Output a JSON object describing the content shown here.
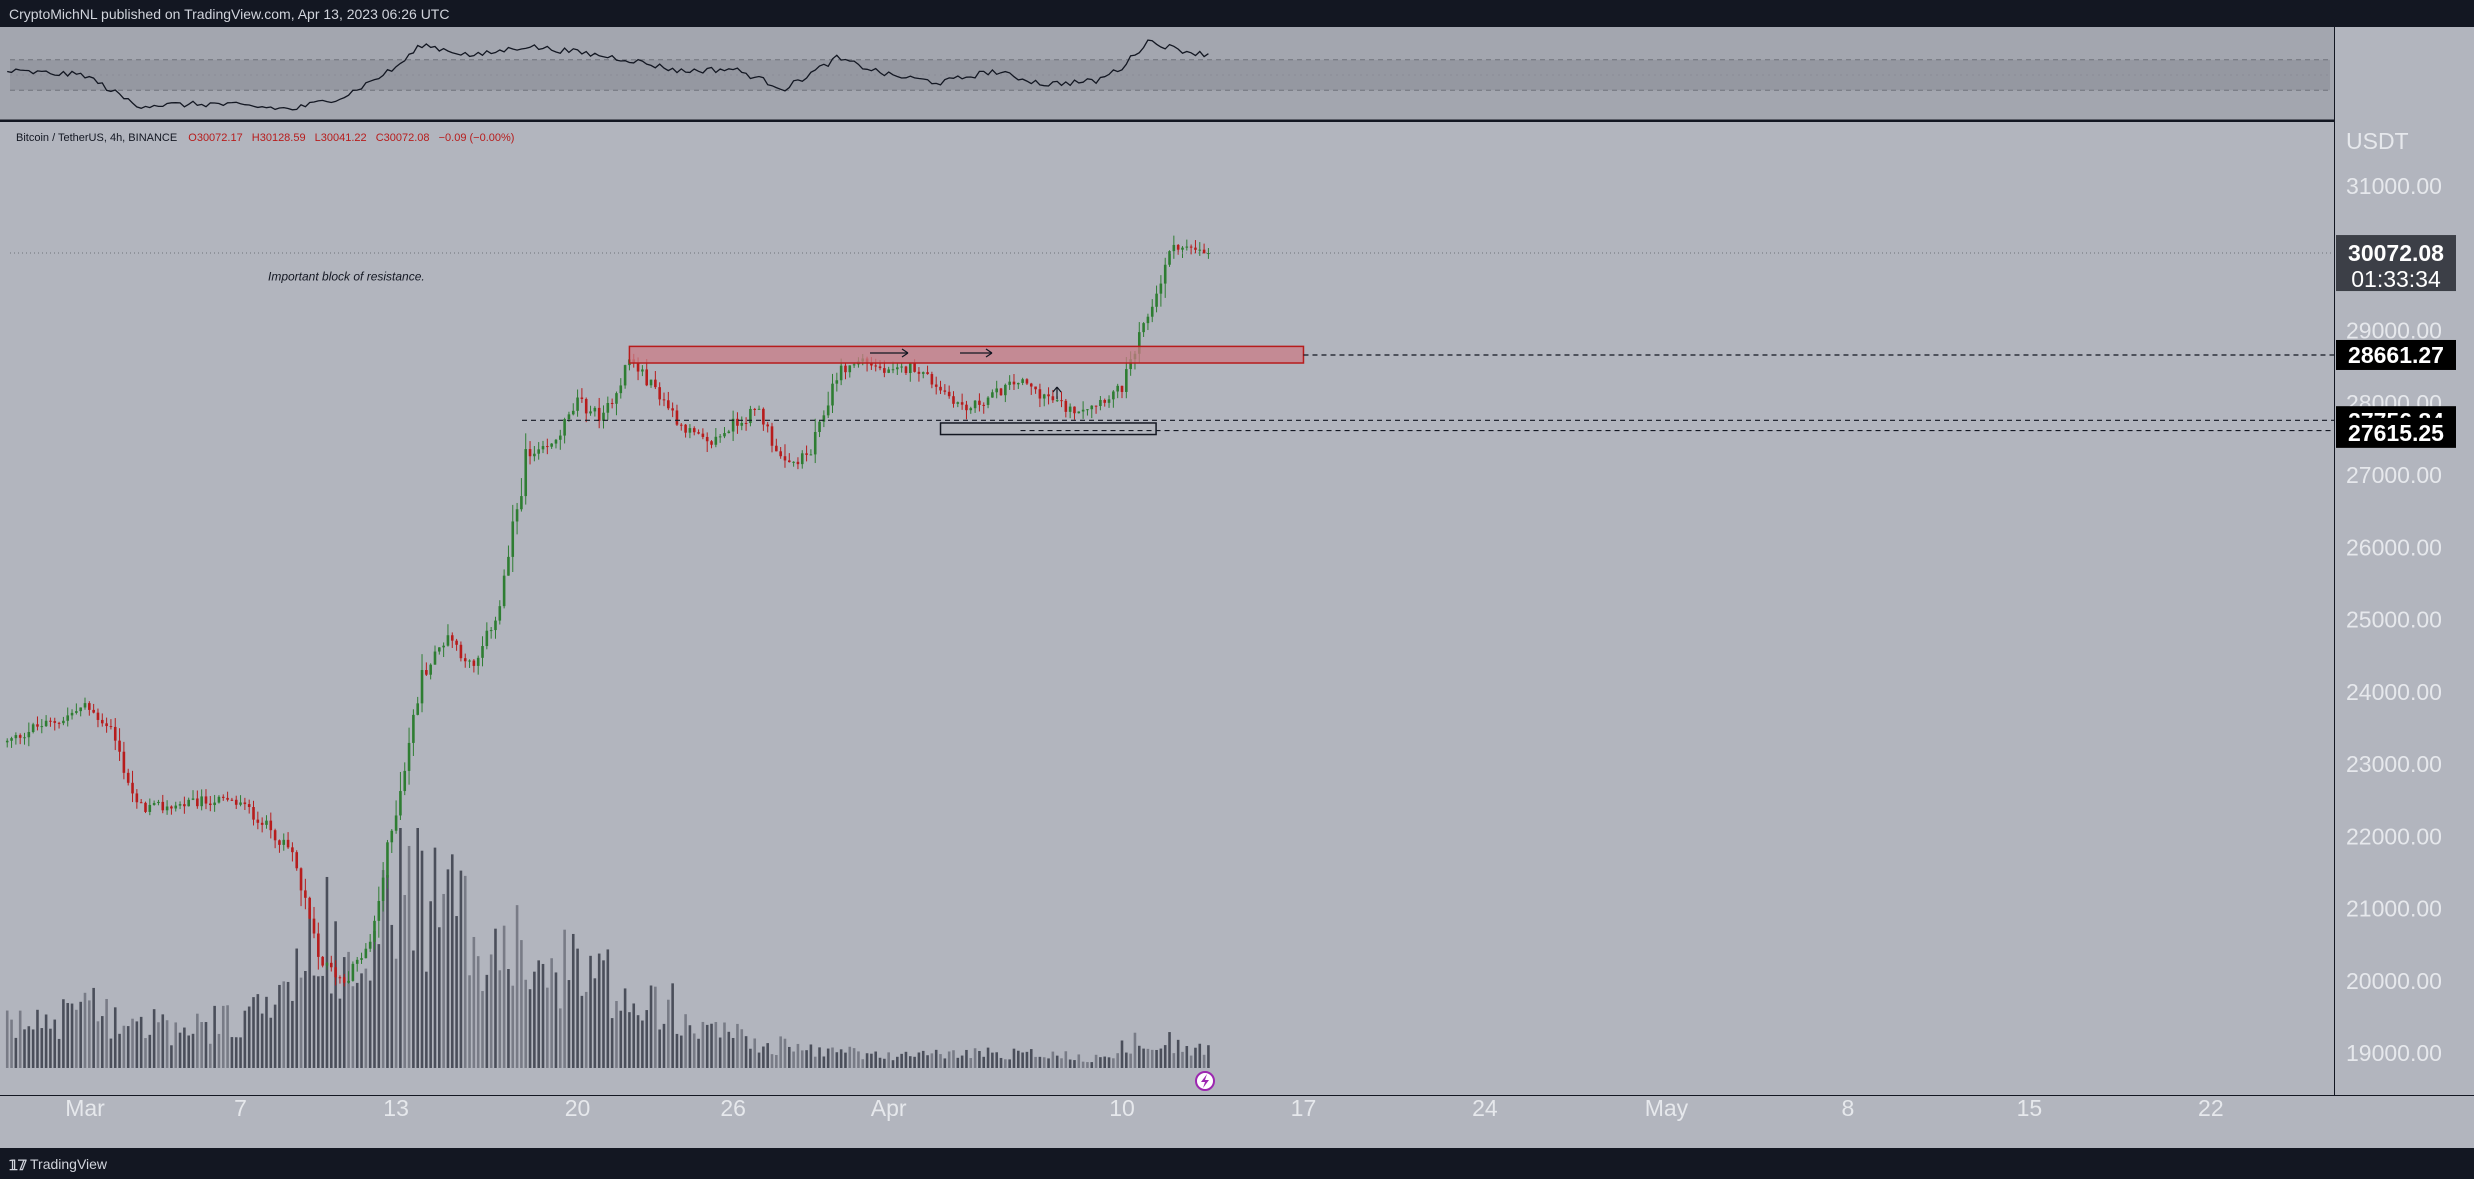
{
  "header": {
    "publisher_text": "CryptoMichNL published on TradingView.com, Apr 13, 2023 06:26 UTC"
  },
  "footer": {
    "logo_glyph": "𝟙𝟟",
    "brand": "TradingView"
  },
  "colors": {
    "page_bg": "#131722",
    "pane_bg": "#b2b5be",
    "rsi_bg": "#a3a6af",
    "rsi_band": "#9598a1",
    "bull": "#2e7d32",
    "bear": "#b71c1c",
    "zone_fill": "#c97c85",
    "zone_stroke": "#b71c1c",
    "volume": "#4a4e5a",
    "volume_light": "#787b86",
    "badge": "#000000",
    "last_badge": "#3c3f47"
  },
  "chart_data": {
    "type": "candlestick",
    "symbol_legend": "Bitcoin / TetherUS, 4h, BINANCE",
    "ohlc": {
      "open": "O30072.17",
      "high": "H30128.59",
      "low": "L30041.22",
      "close": "C30072.08",
      "change": "−0.09 (−0.00%)"
    },
    "y_axis": {
      "unit": "USDT",
      "range": [
        18500,
        31800
      ],
      "ticks": [
        "31000.00",
        "29000.00",
        "28000.00",
        "27000.00",
        "26000.00",
        "25000.00",
        "24000.00",
        "23000.00",
        "22000.00",
        "21000.00",
        "20000.00",
        "19000.00"
      ]
    },
    "x_axis": {
      "range_days": [
        "2023-02-26",
        "2023-05-28"
      ],
      "labels": [
        {
          "text": "Mar",
          "date": "2023-03-01"
        },
        {
          "text": "7",
          "date": "2023-03-07"
        },
        {
          "text": "13",
          "date": "2023-03-13"
        },
        {
          "text": "20",
          "date": "2023-03-20"
        },
        {
          "text": "26",
          "date": "2023-03-26"
        },
        {
          "text": "Apr",
          "date": "2023-04-01"
        },
        {
          "text": "10",
          "date": "2023-04-10"
        },
        {
          "text": "17",
          "date": "2023-04-17"
        },
        {
          "text": "24",
          "date": "2023-04-24"
        },
        {
          "text": "May",
          "date": "2023-05-01"
        },
        {
          "text": "8",
          "date": "2023-05-08"
        },
        {
          "text": "15",
          "date": "2023-05-15"
        },
        {
          "text": "22",
          "date": "2023-05-22"
        }
      ]
    },
    "price_path": [
      {
        "date": "2023-02-26",
        "price": 23300
      },
      {
        "date": "2023-02-27",
        "price": 23500
      },
      {
        "date": "2023-02-28",
        "price": 23600
      },
      {
        "date": "2023-03-01",
        "price": 23800
      },
      {
        "date": "2023-03-02",
        "price": 23500
      },
      {
        "date": "2023-03-03",
        "price": 22400
      },
      {
        "date": "2023-03-04",
        "price": 22400
      },
      {
        "date": "2023-03-05",
        "price": 22450
      },
      {
        "date": "2023-03-06",
        "price": 22500
      },
      {
        "date": "2023-03-07",
        "price": 22450
      },
      {
        "date": "2023-03-08",
        "price": 22150
      },
      {
        "date": "2023-03-09",
        "price": 21750
      },
      {
        "date": "2023-03-10",
        "price": 20300
      },
      {
        "date": "2023-03-11",
        "price": 20000
      },
      {
        "date": "2023-03-12",
        "price": 20500
      },
      {
        "date": "2023-03-13",
        "price": 22400
      },
      {
        "date": "2023-03-14",
        "price": 24200
      },
      {
        "date": "2023-03-15",
        "price": 24800
      },
      {
        "date": "2023-03-16",
        "price": 24300
      },
      {
        "date": "2023-03-17",
        "price": 25200
      },
      {
        "date": "2023-03-18",
        "price": 27200
      },
      {
        "date": "2023-03-19",
        "price": 27400
      },
      {
        "date": "2023-03-20",
        "price": 28000
      },
      {
        "date": "2023-03-21",
        "price": 27800
      },
      {
        "date": "2023-03-22",
        "price": 28600
      },
      {
        "date": "2023-03-23",
        "price": 28200
      },
      {
        "date": "2023-03-24",
        "price": 27700
      },
      {
        "date": "2023-03-25",
        "price": 27400
      },
      {
        "date": "2023-03-26",
        "price": 27700
      },
      {
        "date": "2023-03-27",
        "price": 27900
      },
      {
        "date": "2023-03-28",
        "price": 27100
      },
      {
        "date": "2023-03-29",
        "price": 27300
      },
      {
        "date": "2023-03-30",
        "price": 28400
      },
      {
        "date": "2023-03-31",
        "price": 28600
      },
      {
        "date": "2023-04-01",
        "price": 28400
      },
      {
        "date": "2023-04-02",
        "price": 28500
      },
      {
        "date": "2023-04-03",
        "price": 28200
      },
      {
        "date": "2023-04-04",
        "price": 27900
      },
      {
        "date": "2023-04-05",
        "price": 28100
      },
      {
        "date": "2023-04-06",
        "price": 28300
      },
      {
        "date": "2023-04-07",
        "price": 28100
      },
      {
        "date": "2023-04-08",
        "price": 27900
      },
      {
        "date": "2023-04-09",
        "price": 28000
      },
      {
        "date": "2023-04-10",
        "price": 28200
      },
      {
        "date": "2023-04-11",
        "price": 29200
      },
      {
        "date": "2023-04-12",
        "price": 30200
      },
      {
        "date": "2023-04-13",
        "price": 30070
      }
    ],
    "volume_path": [
      {
        "date": "2023-02-26",
        "level": 0.2
      },
      {
        "date": "2023-03-01",
        "level": 0.3
      },
      {
        "date": "2023-03-05",
        "level": 0.18
      },
      {
        "date": "2023-03-09",
        "level": 0.35
      },
      {
        "date": "2023-03-10",
        "level": 0.75
      },
      {
        "date": "2023-03-12",
        "level": 0.45
      },
      {
        "date": "2023-03-13",
        "level": 1.0
      },
      {
        "date": "2023-03-15",
        "level": 0.8
      },
      {
        "date": "2023-03-18",
        "level": 0.55
      },
      {
        "date": "2023-03-21",
        "level": 0.45
      },
      {
        "date": "2023-03-24",
        "level": 0.3
      },
      {
        "date": "2023-03-27",
        "level": 0.12
      },
      {
        "date": "2023-04-01",
        "level": 0.06
      },
      {
        "date": "2023-04-06",
        "level": 0.08
      },
      {
        "date": "2023-04-09",
        "level": 0.05
      },
      {
        "date": "2023-04-11",
        "level": 0.15
      },
      {
        "date": "2023-04-13",
        "level": 0.1
      }
    ],
    "rsi_path": [
      {
        "date": "2023-02-26",
        "level": 0.55
      },
      {
        "date": "2023-03-01",
        "level": 0.5
      },
      {
        "date": "2023-03-03",
        "level": 0.1
      },
      {
        "date": "2023-03-06",
        "level": 0.12
      },
      {
        "date": "2023-03-09",
        "level": 0.05
      },
      {
        "date": "2023-03-11",
        "level": 0.22
      },
      {
        "date": "2023-03-13",
        "level": 0.6
      },
      {
        "date": "2023-03-14",
        "level": 0.9
      },
      {
        "date": "2023-03-16",
        "level": 0.75
      },
      {
        "date": "2023-03-18",
        "level": 0.88
      },
      {
        "date": "2023-03-20",
        "level": 0.8
      },
      {
        "date": "2023-03-22",
        "level": 0.7
      },
      {
        "date": "2023-03-24",
        "level": 0.55
      },
      {
        "date": "2023-03-26",
        "level": 0.58
      },
      {
        "date": "2023-03-28",
        "level": 0.32
      },
      {
        "date": "2023-03-30",
        "level": 0.72
      },
      {
        "date": "2023-04-01",
        "level": 0.5
      },
      {
        "date": "2023-04-03",
        "level": 0.4
      },
      {
        "date": "2023-04-05",
        "level": 0.55
      },
      {
        "date": "2023-04-07",
        "level": 0.38
      },
      {
        "date": "2023-04-09",
        "level": 0.42
      },
      {
        "date": "2023-04-10",
        "level": 0.6
      },
      {
        "date": "2023-04-11",
        "level": 0.95
      },
      {
        "date": "2023-04-12",
        "level": 0.85
      },
      {
        "date": "2023-04-13",
        "level": 0.78
      }
    ],
    "resistance_zone": {
      "from_date": "2023-03-22",
      "to_date": "2023-04-17",
      "price_low": 28550,
      "price_high": 28780
    },
    "support_box": {
      "from_date": "2023-04-03",
      "to_date": "2023-04-09",
      "price_low": 27560,
      "price_high": 27720
    },
    "price_lines": [
      {
        "label": "28661.27",
        "price": 28661.27,
        "style": "dashed"
      },
      {
        "label": "27756.84",
        "price": 27756.84,
        "style": "dashed"
      },
      {
        "label": "27615.25",
        "price": 27615.25,
        "style": "dashed"
      }
    ],
    "last_price": {
      "label": "30072.08",
      "countdown": "01:33:34",
      "price": 30072.08
    },
    "annotation": {
      "text": "Important block of resistance.",
      "price": 29750,
      "date": "2023-03-07"
    },
    "rsi_bands": [
      0.7,
      0.3
    ]
  }
}
